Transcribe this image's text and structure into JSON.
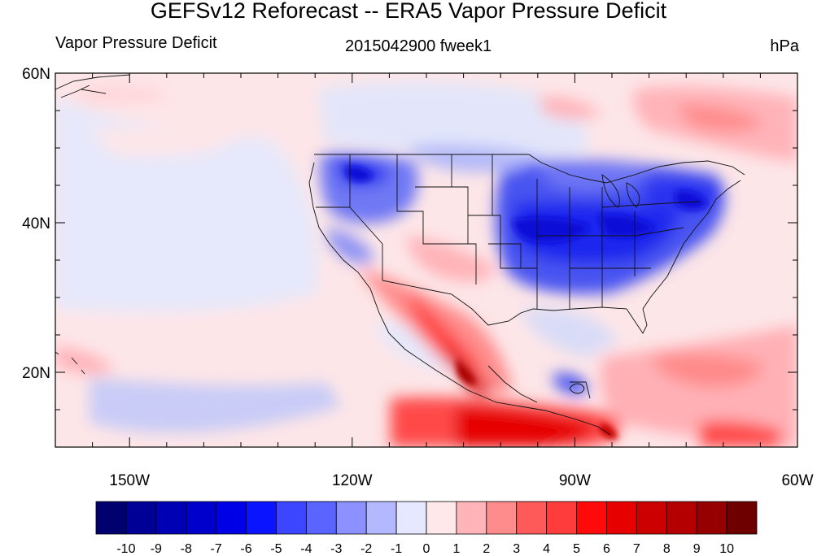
{
  "title": "GEFSv12 Reforecast -- ERA5 Vapor Pressure Deficit",
  "left_subtitle": "Vapor Pressure Deficit",
  "center_subtitle": "2015042900 fweek1",
  "right_subtitle": "hPa",
  "map": {
    "projection": "cylindrical equidistant",
    "lon_range": [
      -160,
      -60
    ],
    "lat_range": [
      10,
      60
    ],
    "lon_ticks": [
      {
        "value": -150,
        "label": "150W"
      },
      {
        "value": -120,
        "label": "120W"
      },
      {
        "value": -90,
        "label": "90W"
      },
      {
        "value": -60,
        "label": "60W"
      }
    ],
    "lat_ticks": [
      {
        "value": 20,
        "label": "20N"
      },
      {
        "value": 40,
        "label": "40N"
      },
      {
        "value": 60,
        "label": "60N"
      }
    ]
  },
  "colorbar": {
    "labels": [
      "-10",
      "-9",
      "-8",
      "-7",
      "-6",
      "-5",
      "-4",
      "-3",
      "-2",
      "-1",
      "0",
      "1",
      "2",
      "3",
      "4",
      "5",
      "6",
      "7",
      "8",
      "9",
      "10"
    ],
    "colors": [
      "#00006e",
      "#000096",
      "#0000b4",
      "#0000cd",
      "#0000e6",
      "#0a14ff",
      "#3c46ff",
      "#5a64ff",
      "#8c91ff",
      "#b4b9ff",
      "#e6e8ff",
      "#ffe8ea",
      "#ffb4b9",
      "#ff8c8c",
      "#ff5a5a",
      "#ff3c3c",
      "#ff0a0a",
      "#e60000",
      "#cd0000",
      "#b40000",
      "#960000",
      "#6e0000"
    ]
  }
}
